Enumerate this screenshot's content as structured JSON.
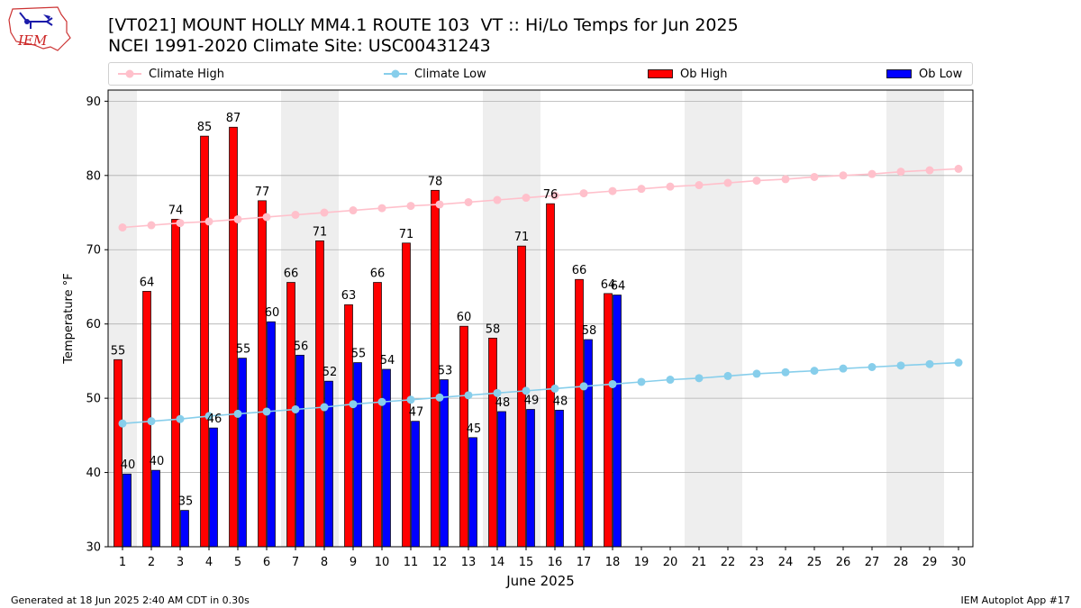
{
  "header": {
    "title_line1": "[VT021] MOUNT HOLLY MM4.1 ROUTE 103  VT :: Hi/Lo Temps for Jun 2025",
    "title_line2": "NCEI 1991-2020 Climate Site: USC00431243",
    "logo_text": "IEM"
  },
  "legend": {
    "climate_high": "Climate High",
    "climate_low": "Climate Low",
    "ob_high": "Ob High",
    "ob_low": "Ob Low"
  },
  "footer": {
    "generated": "Generated at 18 Jun 2025 2:40 AM CDT in 0.30s",
    "app": "IEM Autoplot App #17"
  },
  "chart_data": {
    "type": "bar",
    "xlabel": "June 2025",
    "ylabel": "Temperature °F",
    "ylim": [
      30,
      91.5
    ],
    "yticks": [
      30,
      40,
      50,
      60,
      70,
      80,
      90
    ],
    "days": [
      1,
      2,
      3,
      4,
      5,
      6,
      7,
      8,
      9,
      10,
      11,
      12,
      13,
      14,
      15,
      16,
      17,
      18,
      19,
      20,
      21,
      22,
      23,
      24,
      25,
      26,
      27,
      28,
      29,
      30
    ],
    "weekend_days": [
      1,
      7,
      8,
      14,
      15,
      21,
      22,
      28,
      29
    ],
    "grid": "horizontal",
    "ob_high": [
      55.2,
      64.4,
      74.1,
      85.3,
      86.5,
      76.6,
      65.6,
      71.2,
      62.6,
      65.6,
      70.9,
      78.0,
      59.7,
      58.1,
      70.5,
      76.2,
      66.0,
      64.1
    ],
    "ob_low": [
      39.8,
      40.3,
      34.9,
      46.0,
      55.4,
      60.3,
      55.8,
      52.3,
      54.8,
      53.9,
      46.9,
      52.5,
      44.7,
      48.2,
      48.5,
      48.4,
      57.9,
      63.9
    ],
    "ob_high_labels": [
      "55",
      "64",
      "74",
      "85",
      "87",
      "77",
      "66",
      "71",
      "63",
      "66",
      "71",
      "78",
      "60",
      "58",
      "71",
      "76",
      "66",
      "64"
    ],
    "ob_low_labels": [
      "40",
      "40",
      "35",
      "46",
      "55",
      "60",
      "56",
      "52",
      "55",
      "54",
      "47",
      "53",
      "45",
      "48",
      "49",
      "48",
      "58",
      "64"
    ],
    "climate_high": [
      73.0,
      73.3,
      73.6,
      73.8,
      74.1,
      74.4,
      74.7,
      75.0,
      75.3,
      75.6,
      75.9,
      76.1,
      76.4,
      76.7,
      77.0,
      77.3,
      77.6,
      77.9,
      78.2,
      78.5,
      78.7,
      79.0,
      79.3,
      79.5,
      79.8,
      80.0,
      80.2,
      80.5,
      80.7,
      80.9
    ],
    "climate_low": [
      46.6,
      46.9,
      47.2,
      47.6,
      47.9,
      48.2,
      48.5,
      48.8,
      49.2,
      49.5,
      49.8,
      50.1,
      50.4,
      50.7,
      51.0,
      51.3,
      51.6,
      51.9,
      52.2,
      52.5,
      52.7,
      53.0,
      53.3,
      53.5,
      53.7,
      54.0,
      54.2,
      54.4,
      54.6,
      54.8
    ],
    "colors": {
      "ob_high": "#ff0000",
      "ob_low": "#0000ff",
      "climate_high": "#ffc0cb",
      "climate_low": "#87ceeb",
      "weekend_band": "#eeeeee",
      "grid": "#b0b0b0"
    }
  }
}
